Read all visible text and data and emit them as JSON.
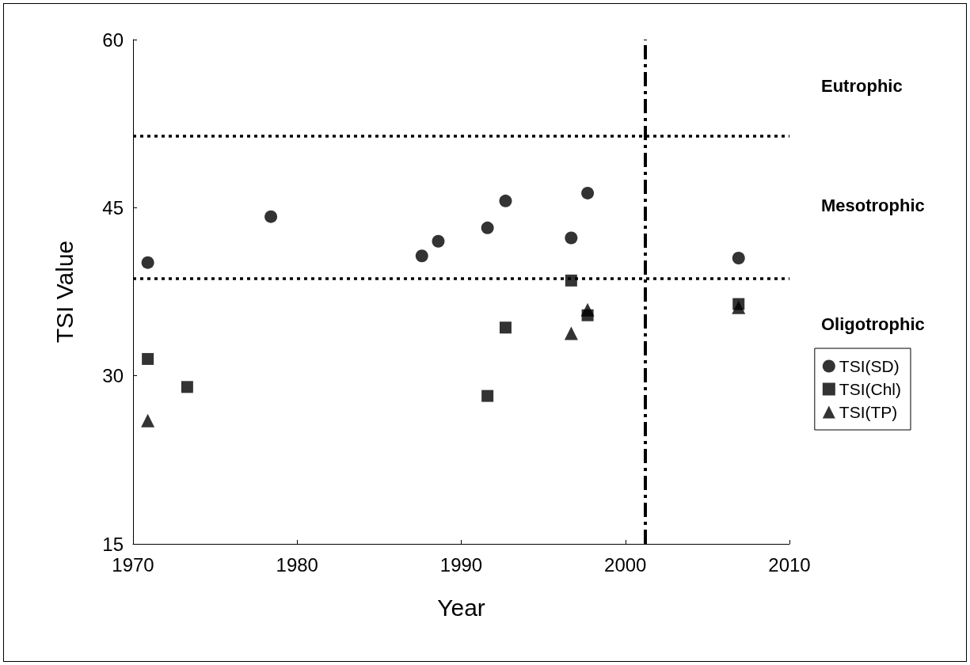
{
  "chart_data": {
    "type": "scatter",
    "xlabel": "Year",
    "ylabel": "TSI Value",
    "xlim": [
      1970,
      2010
    ],
    "xticks": [
      1970,
      1980,
      1990,
      2000,
      2010
    ],
    "ylim": [
      15,
      60
    ],
    "yticks": [
      15,
      30,
      45,
      60
    ],
    "series": [
      {
        "name": "TSI(SD)",
        "color": "#000000",
        "marker": "circle",
        "x": [
          1970.9,
          1978.4,
          1987.6,
          1988.6,
          1991.6,
          1992.7,
          1996.7,
          1997.7,
          2006.9
        ],
        "values": [
          40.1,
          44.2,
          40.7,
          42.0,
          43.2,
          45.6,
          42.3,
          46.3,
          40.5
        ]
      },
      {
        "name": "TSI(Chl)",
        "color": "#000000",
        "marker": "square",
        "x": [
          1970.9,
          1973.3,
          1991.6,
          1992.7,
          1996.7,
          1997.7,
          2006.9
        ],
        "values": [
          31.5,
          29.0,
          28.2,
          34.3,
          38.5,
          35.4,
          36.4
        ]
      },
      {
        "name": "TSI(TP)",
        "color": "#000000",
        "marker": "triangle",
        "x": [
          1970.9,
          1996.7,
          1997.7,
          2006.9
        ],
        "values": [
          26.0,
          33.8,
          35.9,
          36.1
        ]
      }
    ],
    "ref_lines": [
      {
        "axis": "y",
        "value": 51.4,
        "line_style": "dotted",
        "color": "#000000"
      },
      {
        "axis": "y",
        "value": 38.7,
        "line_style": "dotted",
        "color": "#000000"
      },
      {
        "axis": "x",
        "value": 2001.2,
        "line_style": "dashdot",
        "color": "#000000"
      }
    ],
    "annotations": [
      "Eutrophic",
      "Mesotrophic",
      "Oligotrophic"
    ],
    "legend": "right",
    "grid": false
  }
}
